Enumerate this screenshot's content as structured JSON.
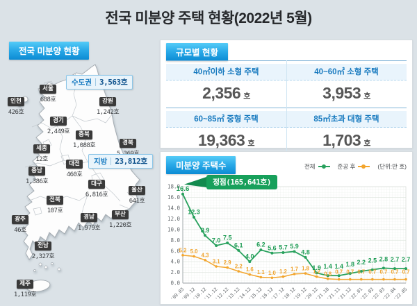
{
  "title": "전국 미분양 주택 현황(2022년 5월)",
  "map_panel": {
    "header": "전국 미분양 현황",
    "summary_boxes": [
      {
        "label": "수도권",
        "value": "3,563호"
      },
      {
        "label": "지방",
        "value": "23,812호"
      }
    ],
    "regions": [
      {
        "name": "서울",
        "value": "688호"
      },
      {
        "name": "인천",
        "value": "426호"
      },
      {
        "name": "경기",
        "value": "2,449호"
      },
      {
        "name": "강원",
        "value": "1,242호"
      },
      {
        "name": "충북",
        "value": "1,088호"
      },
      {
        "name": "세종",
        "value": "12호"
      },
      {
        "name": "경북",
        "value": "5,369호"
      },
      {
        "name": "대전",
        "value": "460호"
      },
      {
        "name": "충남",
        "value": "1,386호"
      },
      {
        "name": "대구",
        "value": "6,816호"
      },
      {
        "name": "울산",
        "value": "641호"
      },
      {
        "name": "전북",
        "value": "107호"
      },
      {
        "name": "경남",
        "value": "1,979호"
      },
      {
        "name": "부산",
        "value": "1,220호"
      },
      {
        "name": "광주",
        "value": "46호"
      },
      {
        "name": "전남",
        "value": "2,327호"
      },
      {
        "name": "제주",
        "value": "1,119호"
      }
    ]
  },
  "scale_panel": {
    "header": "규모별 현황",
    "cells": [
      {
        "label": "40㎡이하 소형 주택",
        "value": "2,356",
        "unit": "호"
      },
      {
        "label": "40~60㎡ 소형 주택",
        "value": "3,953",
        "unit": "호"
      },
      {
        "label": "60~85㎡ 중형 주택",
        "value": "19,363",
        "unit": "호"
      },
      {
        "label": "85㎡초과 대형 주택",
        "value": "1,703",
        "unit": "호"
      }
    ]
  },
  "chart_panel": {
    "header": "미분양 주택수",
    "legend": [
      {
        "label": "전체",
        "color": "#28a15d"
      },
      {
        "label": "준공 후",
        "color": "#f3a52d"
      }
    ],
    "unit_note": "(단위:만 호)",
    "callout": "정점(165,641호)",
    "callout_color": "#17a05b"
  },
  "chart_data": {
    "type": "line",
    "title": "미분양 주택수",
    "unit": "만 호",
    "categories": [
      "'09.03",
      "'09.12",
      "'10.12",
      "'11.12",
      "'12.12",
      "'13.12",
      "'14.12",
      "'15.12",
      "'16.12",
      "'17.12",
      "'18.12",
      "'19.12",
      "'20.12",
      "'21.10",
      "'21.11",
      "'21.12",
      "'22.01",
      "'22.02",
      "'22.03",
      "'22.04",
      "'22.05"
    ],
    "series": [
      {
        "name": "전체",
        "color": "#28a15d",
        "values": [
          16.6,
          12.3,
          8.9,
          7.0,
          7.5,
          6.1,
          4.0,
          6.2,
          5.6,
          5.7,
          5.9,
          4.8,
          1.9,
          1.4,
          1.4,
          1.8,
          2.2,
          2.5,
          2.8,
          2.7,
          2.7
        ]
      },
      {
        "name": "준공 후",
        "color": "#f3a52d",
        "values": [
          5.2,
          5.0,
          4.3,
          3.1,
          2.9,
          2.2,
          1.6,
          1.1,
          1.0,
          1.2,
          1.7,
          1.8,
          1.2,
          0.8,
          0.7,
          0.7,
          0.7,
          0.7,
          0.7,
          0.7,
          0.7
        ]
      }
    ],
    "ylim": [
      0,
      18
    ],
    "ytick_step": 2,
    "grid": true,
    "legend_position": "top-right",
    "annotation": {
      "text": "정점(165,641호)",
      "at_category": "'09.03",
      "at_value": 16.6
    }
  }
}
